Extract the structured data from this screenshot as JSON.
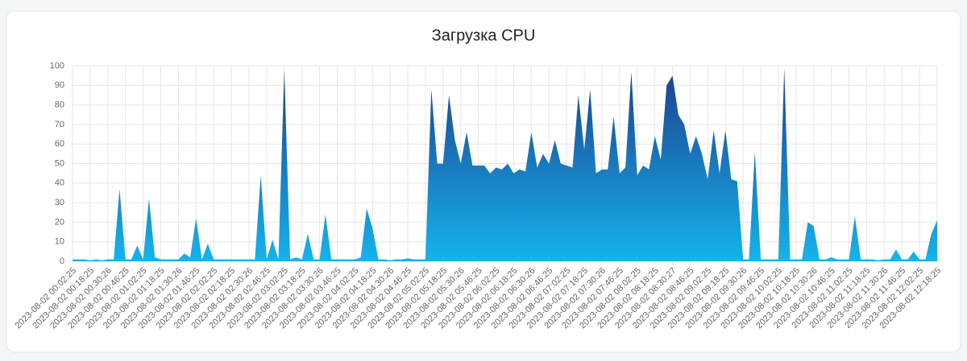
{
  "chart_data": {
    "type": "area",
    "title": "Загрузка CPU",
    "categories": [
      "2023-08-02 00:02:25",
      null,
      null,
      "2023-08-02 00:18:25",
      null,
      null,
      "2023-08-02 00:30:26",
      null,
      null,
      "2023-08-02 00:46:25",
      null,
      null,
      "2023-08-02 01:02:25",
      null,
      null,
      "2023-08-02 01:18:25",
      null,
      null,
      "2023-08-02 01:30:26",
      null,
      null,
      "2023-08-02 01:46:25",
      null,
      null,
      "2023-08-02 02:02:25",
      null,
      null,
      "2023-08-02 02:18:25",
      null,
      null,
      "2023-08-02 02:30:26",
      null,
      null,
      "2023-08-02 02:46:25",
      null,
      null,
      "2023-08-02 03:02:25",
      null,
      null,
      "2023-08-02 03:18:25",
      null,
      null,
      "2023-08-02 03:30:26",
      null,
      null,
      "2023-08-02 03:46:25",
      null,
      null,
      "2023-08-02 04:02:25",
      null,
      null,
      "2023-08-02 04:18:25",
      null,
      null,
      "2023-08-02 04:30:26",
      null,
      null,
      "2023-08-02 04:46:25",
      null,
      null,
      "2023-08-02 05:02:25",
      null,
      null,
      "2023-08-02 05:18:25",
      null,
      null,
      "2023-08-02 05:30:26",
      null,
      null,
      "2023-08-02 05:46:25",
      null,
      null,
      "2023-08-02 06:02:25",
      null,
      null,
      "2023-08-02 06:18:25",
      null,
      null,
      "2023-08-02 06:30:26",
      null,
      null,
      "2023-08-02 06:46:25",
      null,
      null,
      "2023-08-02 07:02:25",
      null,
      null,
      "2023-08-02 07:18:25",
      null,
      null,
      "2023-08-02 07:30:26",
      null,
      null,
      "2023-08-02 07:46:25",
      null,
      null,
      "2023-08-02 08:02:25",
      null,
      null,
      "2023-08-02 08:18:25",
      null,
      null,
      "2023-08-02 08:30:27",
      null,
      null,
      "2023-08-02 08:46:25",
      null,
      null,
      "2023-08-02 09:02:25",
      null,
      null,
      "2023-08-02 09:18:25",
      null,
      null,
      "2023-08-02 09:30:26",
      null,
      null,
      "2023-08-02 09:46:25",
      null,
      null,
      "2023-08-02 10:02:25",
      null,
      null,
      "2023-08-02 10:18:25",
      null,
      null,
      "2023-08-02 10:30:26",
      null,
      null,
      "2023-08-02 10:46:25",
      null,
      null,
      "2023-08-02 11:02:25",
      null,
      null,
      "2023-08-02 11:18:25",
      null,
      null,
      "2023-08-02 11:30:26",
      null,
      null,
      "2023-08-02 11:46:25",
      null,
      null,
      "2023-08-02 12:02:25",
      null,
      null,
      "2023-08-02 12:18:25"
    ],
    "values": [
      1,
      1,
      1,
      0.5,
      1,
      0.5,
      1,
      1,
      37,
      1,
      1,
      8,
      1,
      32,
      2,
      1,
      1,
      1,
      1,
      4,
      2,
      22,
      1,
      9,
      1,
      1,
      1,
      1,
      1,
      1,
      1,
      1,
      44,
      1,
      11,
      1,
      98,
      1,
      2,
      1,
      14,
      1,
      1,
      24,
      1,
      1,
      1,
      1,
      1,
      2,
      27,
      17,
      1,
      1,
      0.5,
      1,
      1,
      1.5,
      1,
      1,
      1,
      88,
      50,
      50,
      85,
      62,
      50,
      66,
      49,
      49,
      49,
      45,
      48,
      47,
      50,
      45,
      47,
      46,
      66,
      48,
      55,
      50,
      62,
      50,
      49,
      48,
      85,
      57,
      88,
      45,
      47,
      47,
      74,
      45,
      48,
      97,
      44,
      49,
      47,
      64,
      52,
      90,
      95,
      75,
      70,
      55,
      64,
      55,
      42,
      67,
      45,
      67,
      42,
      41,
      1,
      1,
      56,
      1,
      1,
      1,
      1,
      99,
      1,
      1,
      1,
      20,
      18,
      1,
      1,
      2,
      1,
      1,
      1,
      23,
      1,
      1,
      1,
      0.5,
      1,
      1,
      6,
      1,
      1,
      5,
      1,
      1,
      14,
      21
    ],
    "gradient": [
      "#1c3f8c",
      "#15b3ec"
    ],
    "ylim": [
      0,
      100
    ],
    "yticks": [
      0,
      10,
      20,
      30,
      40,
      50,
      60,
      70,
      80,
      90,
      100
    ],
    "grid": true
  }
}
